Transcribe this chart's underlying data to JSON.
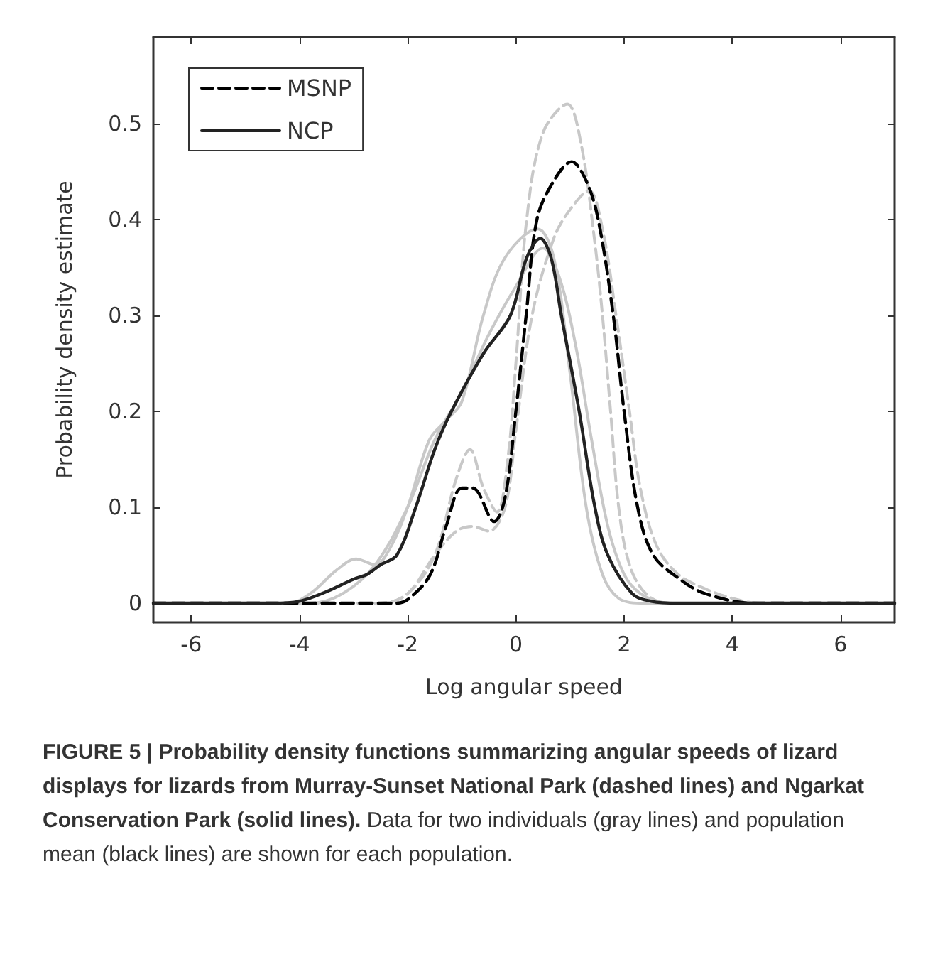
{
  "chart_data": {
    "type": "line",
    "xlabel": "Log angular speed",
    "ylabel": "Probability density estimate",
    "annotations": [
      "FIGURE 5 | Probability density functions summarizing angular speeds of lizard displays for lizards from Murray-Sunset National Park (dashed lines) and Ngarkat Conservation Park (solid lines).",
      "Data for two individuals (gray lines) and population mean (black lines) are shown for each population."
    ],
    "xlim": [
      -6.7,
      7
    ],
    "ylim": [
      -0.02,
      0.59
    ],
    "xticks": [
      -6,
      -4,
      -2,
      0,
      2,
      4,
      6
    ],
    "yticks": [
      0,
      0.1,
      0.2,
      0.3,
      0.4,
      0.5
    ],
    "grid": false,
    "legend": "top left",
    "marker": "none",
    "series": [
      {
        "color": "#c8c8c8",
        "line_style": "dashed",
        "x": [
          -6.7,
          -2.5,
          -2,
          -1.5,
          -1.1,
          -0.85,
          -0.6,
          -0.35,
          -0.15,
          0,
          0.2,
          0.5,
          0.95,
          1.2,
          1.45,
          1.6,
          1.75,
          1.9,
          2.1,
          2.4,
          2.8,
          7
        ],
        "values": [
          0,
          0,
          0.01,
          0.05,
          0.13,
          0.16,
          0.12,
          0.095,
          0.15,
          0.25,
          0.4,
          0.49,
          0.52,
          0.48,
          0.38,
          0.3,
          0.2,
          0.1,
          0.04,
          0.01,
          0,
          0
        ]
      },
      {
        "color": "#c8c8c8",
        "line_style": "dashed",
        "x": [
          -6.7,
          -2.5,
          -2,
          -1.5,
          -1.1,
          -0.8,
          -0.5,
          -0.2,
          0,
          0.3,
          0.7,
          1,
          1.35,
          1.6,
          1.85,
          2.1,
          2.3,
          2.6,
          3,
          3.5,
          4,
          4.5,
          7
        ],
        "values": [
          0,
          0,
          0.01,
          0.05,
          0.075,
          0.08,
          0.075,
          0.1,
          0.18,
          0.3,
          0.38,
          0.41,
          0.43,
          0.39,
          0.3,
          0.2,
          0.12,
          0.06,
          0.03,
          0.015,
          0.005,
          0,
          0
        ]
      },
      {
        "color": "#c8c8c8",
        "line_style": "solid",
        "x": [
          -6.7,
          -4.2,
          -3.8,
          -3.3,
          -2.95,
          -2.6,
          -2.3,
          -2,
          -1.6,
          -1.3,
          -1,
          -0.6,
          -0.2,
          0.4,
          0.7,
          1,
          1.3,
          1.6,
          1.9,
          2.3,
          7
        ],
        "values": [
          0,
          0,
          0.01,
          0.035,
          0.046,
          0.04,
          0.06,
          0.1,
          0.17,
          0.19,
          0.21,
          0.3,
          0.36,
          0.39,
          0.36,
          0.24,
          0.1,
          0.03,
          0.005,
          0,
          0
        ]
      },
      {
        "color": "#c8c8c8",
        "line_style": "solid",
        "x": [
          -6.7,
          -3.8,
          -3.2,
          -2.6,
          -2,
          -1.5,
          -1,
          -0.5,
          0,
          0.5,
          0.8,
          1.1,
          1.4,
          1.7,
          2,
          2.3,
          2.7,
          3,
          7
        ],
        "values": [
          0,
          0,
          0.01,
          0.04,
          0.1,
          0.17,
          0.22,
          0.28,
          0.33,
          0.37,
          0.34,
          0.27,
          0.17,
          0.08,
          0.03,
          0.01,
          0.001,
          0,
          0
        ]
      },
      {
        "name": "MSNP",
        "color": "#000000",
        "line_style": "dashed",
        "x": [
          -6.7,
          -2.2,
          -1.97,
          -1.58,
          -1.29,
          -1,
          -0.8,
          -0.4,
          -0.2,
          0,
          0.19,
          0.39,
          0.7,
          1.03,
          1.3,
          1.52,
          1.8,
          2,
          2.25,
          2.54,
          3.03,
          3.5,
          4.4,
          7
        ],
        "values": [
          0,
          0,
          0.005,
          0.03,
          0.08,
          0.12,
          0.12,
          0.085,
          0.11,
          0.2,
          0.3,
          0.4,
          0.44,
          0.46,
          0.44,
          0.4,
          0.3,
          0.2,
          0.1,
          0.05,
          0.025,
          0.01,
          0,
          0
        ]
      },
      {
        "name": "NCP",
        "color": "#222222",
        "line_style": "solid",
        "x": [
          -6.7,
          -4.5,
          -4,
          -3.5,
          -3,
          -2.75,
          -2.5,
          -2.2,
          -1.85,
          -1.5,
          -1.19,
          -0.6,
          -0.1,
          0.2,
          0.45,
          0.65,
          0.84,
          1.17,
          1.46,
          1.7,
          2.15,
          2.5,
          3,
          7
        ],
        "values": [
          0,
          0,
          0.002,
          0.012,
          0.025,
          0.03,
          0.04,
          0.05,
          0.1,
          0.16,
          0.2,
          0.26,
          0.3,
          0.36,
          0.38,
          0.36,
          0.3,
          0.2,
          0.1,
          0.05,
          0.01,
          0.002,
          0,
          0
        ]
      }
    ]
  }
}
